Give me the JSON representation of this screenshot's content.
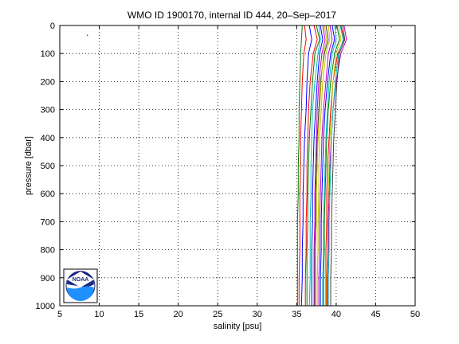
{
  "chart_data": {
    "type": "line",
    "title": "WMO ID 1900170, internal ID 444, 20–Sep–2017",
    "xlabel": "salinity [psu]",
    "ylabel": "pressure [dbar]",
    "xlim": [
      5,
      50
    ],
    "ylim": [
      0,
      1000
    ],
    "y_reversed": true,
    "grid": true,
    "xticks": [
      5,
      10,
      15,
      20,
      25,
      30,
      35,
      40,
      45,
      50
    ],
    "yticks": [
      0,
      100,
      200,
      300,
      400,
      500,
      600,
      700,
      800,
      900,
      1000
    ],
    "pressure_levels": [
      0,
      50,
      100,
      200,
      300,
      400,
      500,
      600,
      700,
      800,
      900,
      1000
    ],
    "series": [
      {
        "color": "#0000ff",
        "x": [
          36.6,
          36.9,
          36.5,
          36.3,
          36.2,
          36.0,
          35.9,
          35.8,
          35.8,
          35.7,
          35.7,
          35.6
        ]
      },
      {
        "color": "#008000",
        "x": [
          35.7,
          35.6,
          35.5,
          35.4,
          35.3,
          35.3,
          35.2,
          35.2,
          35.1,
          35.1,
          35.1,
          35.1
        ]
      },
      {
        "color": "#ff0000",
        "x": [
          37.2,
          37.6,
          37.1,
          36.7,
          36.5,
          36.4,
          36.3,
          36.3,
          36.2,
          36.2,
          36.1,
          36.1
        ]
      },
      {
        "color": "#00bfbf",
        "x": [
          37.8,
          38.0,
          37.7,
          37.3,
          37.0,
          36.9,
          36.8,
          36.8,
          36.7,
          36.7,
          36.7,
          36.6
        ]
      },
      {
        "color": "#bf00bf",
        "x": [
          38.3,
          38.6,
          38.2,
          37.8,
          37.6,
          37.5,
          37.4,
          37.3,
          37.3,
          37.2,
          37.2,
          37.2
        ]
      },
      {
        "color": "#bfbf00",
        "x": [
          39.0,
          39.2,
          38.7,
          38.3,
          38.1,
          37.9,
          37.8,
          37.8,
          37.7,
          37.7,
          37.6,
          37.6
        ]
      },
      {
        "color": "#404040",
        "x": [
          38.7,
          39.0,
          38.5,
          38.0,
          37.8,
          37.6,
          37.5,
          37.4,
          37.4,
          37.3,
          37.3,
          37.3
        ]
      },
      {
        "color": "#0000ff",
        "x": [
          39.5,
          39.8,
          39.3,
          38.9,
          38.6,
          38.4,
          38.3,
          38.2,
          38.1,
          38.1,
          38.0,
          38.0
        ]
      },
      {
        "color": "#008000",
        "x": [
          40.1,
          40.4,
          39.8,
          39.3,
          39.0,
          38.8,
          38.7,
          38.6,
          38.5,
          38.5,
          38.4,
          38.4
        ]
      },
      {
        "color": "#ff0000",
        "x": [
          40.6,
          41.0,
          40.2,
          39.6,
          39.3,
          39.1,
          38.9,
          38.8,
          38.8,
          38.7,
          38.7,
          38.7
        ]
      },
      {
        "color": "#00bfbf",
        "x": [
          39.8,
          40.0,
          39.5,
          39.1,
          38.9,
          38.7,
          38.6,
          38.5,
          38.4,
          38.4,
          38.3,
          38.3
        ]
      },
      {
        "color": "#bf00bf",
        "x": [
          41.0,
          41.3,
          40.6,
          40.0,
          39.6,
          39.4,
          39.2,
          39.1,
          39.0,
          39.0,
          38.9,
          38.9
        ]
      },
      {
        "color": "#bfbf00",
        "x": [
          40.3,
          40.6,
          40.0,
          39.6,
          39.4,
          39.2,
          39.1,
          39.0,
          38.9,
          38.9,
          38.8,
          38.8
        ]
      },
      {
        "color": "#404040",
        "x": [
          40.8,
          41.1,
          40.4,
          40.1,
          39.9,
          39.7,
          39.6,
          39.5,
          39.4,
          39.4,
          39.3,
          39.3
        ]
      },
      {
        "color": "#0000ff",
        "x": [
          38.0,
          38.3,
          37.9,
          37.6,
          37.4,
          37.2,
          37.1,
          37.0,
          37.0,
          36.9,
          36.9,
          36.9
        ]
      },
      {
        "color": "#ff0000",
        "x": [
          36.0,
          36.2,
          35.9,
          35.7,
          35.6,
          35.5,
          35.5,
          35.4,
          35.4,
          35.4,
          35.3,
          35.3
        ]
      },
      {
        "color": "#008000",
        "x": [
          37.5,
          37.9,
          37.3,
          37.0,
          36.8,
          36.6,
          36.5,
          36.4,
          36.4,
          36.3,
          36.3,
          36.3
        ]
      },
      {
        "color": "#bf00bf",
        "x": [
          39.2,
          39.5,
          39.0,
          38.7,
          38.4,
          38.2,
          38.1,
          38.0,
          37.9,
          37.9,
          37.8,
          37.8
        ]
      },
      {
        "color": "#00bfbf",
        "x": [
          40.5,
          40.9,
          40.3,
          39.9,
          39.6,
          39.4,
          39.3,
          39.2,
          39.1,
          39.1,
          39.0,
          39.0
        ]
      },
      {
        "color": "#bfbf00",
        "x": [
          38.5,
          38.8,
          38.4,
          38.1,
          37.9,
          37.7,
          37.6,
          37.5,
          37.5,
          37.4,
          37.4,
          37.4
        ]
      }
    ],
    "stray_points": [
      {
        "x": 8.5,
        "y": 35
      },
      {
        "x": 47.0,
        "y": 5
      }
    ]
  },
  "logo": {
    "text": "NOAA"
  }
}
